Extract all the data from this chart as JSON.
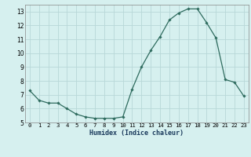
{
  "x": [
    0,
    1,
    2,
    3,
    4,
    5,
    6,
    7,
    8,
    9,
    10,
    11,
    12,
    13,
    14,
    15,
    16,
    17,
    18,
    19,
    20,
    21,
    22,
    23
  ],
  "y": [
    7.3,
    6.6,
    6.4,
    6.4,
    6.0,
    5.6,
    5.4,
    5.3,
    5.3,
    5.3,
    5.4,
    7.4,
    9.0,
    10.2,
    11.2,
    12.4,
    12.9,
    13.2,
    13.2,
    12.2,
    11.1,
    8.1,
    7.9,
    6.9
  ],
  "xlabel": "Humidex (Indice chaleur)",
  "xlim": [
    -0.5,
    23.5
  ],
  "ylim": [
    5,
    13.5
  ],
  "yticks": [
    5,
    6,
    7,
    8,
    9,
    10,
    11,
    12,
    13
  ],
  "xticks": [
    0,
    1,
    2,
    3,
    4,
    5,
    6,
    7,
    8,
    9,
    10,
    11,
    12,
    13,
    14,
    15,
    16,
    17,
    18,
    19,
    20,
    21,
    22,
    23
  ],
  "line_color": "#2e6b5e",
  "marker": "D",
  "marker_size": 1.8,
  "bg_color": "#d6f0ef",
  "grid_color": "#b8d8d8",
  "xlabel_color": "#1a3a5c",
  "xlabel_fontsize": 6.0,
  "tick_fontsize": 5.2
}
